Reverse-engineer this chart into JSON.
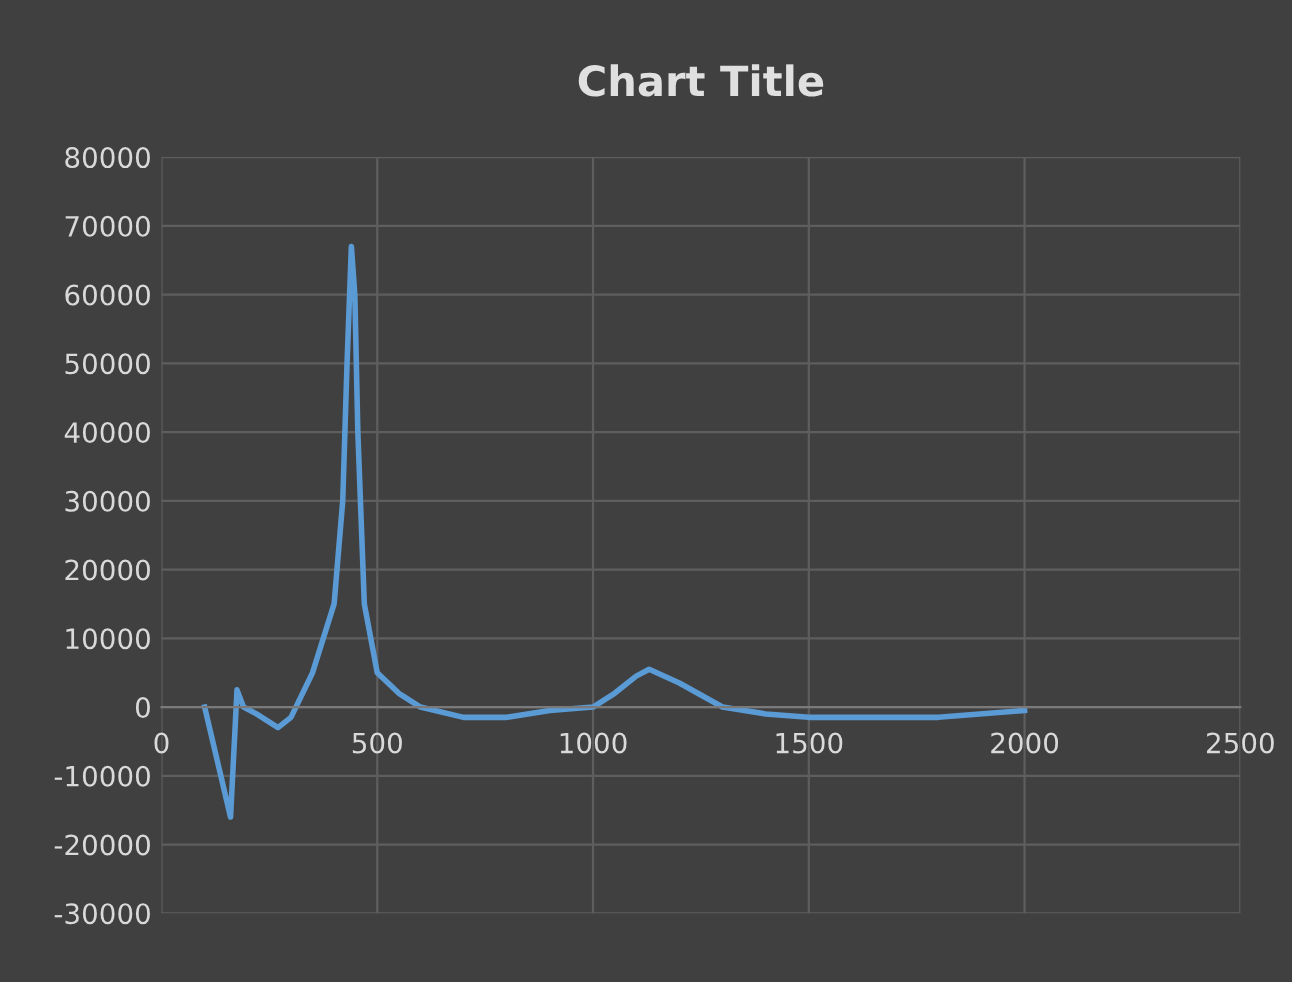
{
  "chart_data": {
    "type": "line",
    "title": "Chart Title",
    "x": [
      100,
      160,
      175,
      190,
      220,
      270,
      300,
      350,
      400,
      420,
      430,
      440,
      448,
      455,
      470,
      500,
      550,
      600,
      700,
      800,
      900,
      1000,
      1050,
      1100,
      1130,
      1200,
      1300,
      1400,
      1500,
      1600,
      1800,
      2000
    ],
    "series": [
      {
        "color": "#5b9bd5",
        "values": [
          0,
          -16000,
          2500,
          0,
          -1000,
          -3000,
          -1500,
          5000,
          15000,
          30000,
          50000,
          67000,
          60000,
          40000,
          15000,
          5000,
          2000,
          0,
          -1500,
          -1500,
          -500,
          0,
          2000,
          4500,
          5500,
          3500,
          0,
          -1000,
          -1500,
          -1500,
          -1500,
          -500
        ]
      }
    ],
    "xlim": [
      0,
      2500
    ],
    "xticks": [
      0,
      500,
      1000,
      1500,
      2000,
      2500
    ],
    "ylim": [
      -30000,
      80000
    ],
    "yticks": [
      -30000,
      -20000,
      -10000,
      0,
      10000,
      20000,
      30000,
      40000,
      50000,
      60000,
      70000,
      80000
    ],
    "grid": true,
    "marker": "none",
    "line_style": "solid",
    "legend": false
  }
}
